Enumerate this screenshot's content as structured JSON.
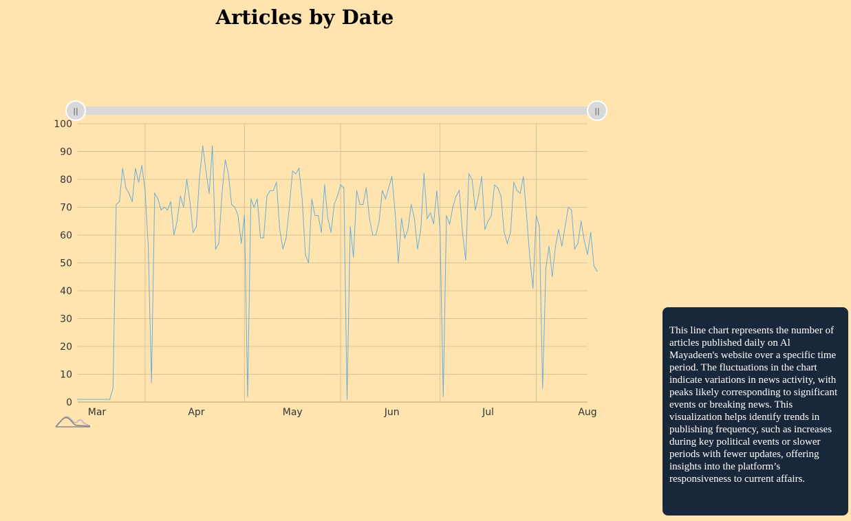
{
  "chart_data": {
    "type": "line",
    "title": "Articles by Date",
    "xlabel": "",
    "ylabel": "",
    "x_range": [
      "2024-02-24",
      "2024-08-01"
    ],
    "ylim": [
      0,
      100
    ],
    "y_ticks": [
      0,
      10,
      20,
      30,
      40,
      50,
      60,
      70,
      80,
      90,
      100
    ],
    "x_ticks": [
      {
        "date": "2024-03-01",
        "label": "Mar"
      },
      {
        "date": "2024-04-01",
        "label": "Apr"
      },
      {
        "date": "2024-05-01",
        "label": "May"
      },
      {
        "date": "2024-06-01",
        "label": "Jun"
      },
      {
        "date": "2024-07-01",
        "label": "Jul"
      },
      {
        "date": "2024-08-01",
        "label": "Aug"
      }
    ],
    "x_gridlines": [
      "2024-03-16",
      "2024-04-16",
      "2024-05-16",
      "2024-06-16",
      "2024-07-16"
    ],
    "grid": true,
    "line_color": "#6aaed6",
    "series": [
      {
        "values": [
          [
            "2024-02-24",
            1
          ],
          [
            "2024-03-05",
            1
          ],
          [
            "2024-03-06",
            5
          ],
          [
            "2024-03-07",
            71
          ],
          [
            "2024-03-08",
            72
          ],
          [
            "2024-03-09",
            84
          ],
          [
            "2024-03-10",
            77
          ],
          [
            "2024-03-11",
            75
          ],
          [
            "2024-03-12",
            72
          ],
          [
            "2024-03-13",
            84
          ],
          [
            "2024-03-14",
            79
          ],
          [
            "2024-03-15",
            85
          ],
          [
            "2024-03-16",
            76
          ],
          [
            "2024-03-17",
            56
          ],
          [
            "2024-03-18",
            7
          ],
          [
            "2024-03-19",
            75
          ],
          [
            "2024-03-20",
            73
          ],
          [
            "2024-03-21",
            69
          ],
          [
            "2024-03-22",
            70
          ],
          [
            "2024-03-23",
            69
          ],
          [
            "2024-03-24",
            72
          ],
          [
            "2024-03-25",
            60
          ],
          [
            "2024-03-26",
            65
          ],
          [
            "2024-03-27",
            74
          ],
          [
            "2024-03-28",
            70
          ],
          [
            "2024-03-29",
            80
          ],
          [
            "2024-03-30",
            72
          ],
          [
            "2024-03-31",
            61
          ],
          [
            "2024-04-01",
            63
          ],
          [
            "2024-04-02",
            81
          ],
          [
            "2024-04-03",
            92
          ],
          [
            "2024-04-04",
            83
          ],
          [
            "2024-04-05",
            75
          ],
          [
            "2024-04-06",
            92
          ],
          [
            "2024-04-07",
            55
          ],
          [
            "2024-04-08",
            57
          ],
          [
            "2024-04-09",
            75
          ],
          [
            "2024-04-10",
            87
          ],
          [
            "2024-04-11",
            82
          ],
          [
            "2024-04-12",
            71
          ],
          [
            "2024-04-13",
            70
          ],
          [
            "2024-04-14",
            67
          ],
          [
            "2024-04-15",
            57
          ],
          [
            "2024-04-16",
            67
          ],
          [
            "2024-04-17",
            2
          ],
          [
            "2024-04-18",
            73
          ],
          [
            "2024-04-19",
            70
          ],
          [
            "2024-04-20",
            73
          ],
          [
            "2024-04-21",
            59
          ],
          [
            "2024-04-22",
            59
          ],
          [
            "2024-04-23",
            74
          ],
          [
            "2024-04-24",
            76
          ],
          [
            "2024-04-25",
            76
          ],
          [
            "2024-04-26",
            79
          ],
          [
            "2024-04-27",
            62
          ],
          [
            "2024-04-28",
            55
          ],
          [
            "2024-04-29",
            59
          ],
          [
            "2024-04-30",
            70
          ],
          [
            "2024-05-01",
            83
          ],
          [
            "2024-05-02",
            82
          ],
          [
            "2024-05-03",
            84
          ],
          [
            "2024-05-04",
            73
          ],
          [
            "2024-05-05",
            53
          ],
          [
            "2024-05-06",
            50
          ],
          [
            "2024-05-07",
            73
          ],
          [
            "2024-05-08",
            67
          ],
          [
            "2024-05-09",
            67
          ],
          [
            "2024-05-10",
            61
          ],
          [
            "2024-05-11",
            78
          ],
          [
            "2024-05-12",
            66
          ],
          [
            "2024-05-13",
            61
          ],
          [
            "2024-05-14",
            71
          ],
          [
            "2024-05-15",
            74
          ],
          [
            "2024-05-16",
            78
          ],
          [
            "2024-05-17",
            77
          ],
          [
            "2024-05-18",
            1
          ],
          [
            "2024-05-19",
            63
          ],
          [
            "2024-05-20",
            52
          ],
          [
            "2024-05-21",
            76
          ],
          [
            "2024-05-22",
            71
          ],
          [
            "2024-05-23",
            71
          ],
          [
            "2024-05-24",
            77
          ],
          [
            "2024-05-25",
            66
          ],
          [
            "2024-05-26",
            60
          ],
          [
            "2024-05-27",
            60
          ],
          [
            "2024-05-28",
            65
          ],
          [
            "2024-05-29",
            76
          ],
          [
            "2024-05-30",
            73
          ],
          [
            "2024-05-31",
            77
          ],
          [
            "2024-06-01",
            81
          ],
          [
            "2024-06-02",
            68
          ],
          [
            "2024-06-03",
            50
          ],
          [
            "2024-06-04",
            66
          ],
          [
            "2024-06-05",
            59
          ],
          [
            "2024-06-06",
            62
          ],
          [
            "2024-06-07",
            71
          ],
          [
            "2024-06-08",
            66
          ],
          [
            "2024-06-09",
            55
          ],
          [
            "2024-06-10",
            62
          ],
          [
            "2024-06-11",
            82
          ],
          [
            "2024-06-12",
            66
          ],
          [
            "2024-06-13",
            68
          ],
          [
            "2024-06-14",
            64
          ],
          [
            "2024-06-15",
            76
          ],
          [
            "2024-06-16",
            62
          ],
          [
            "2024-06-17",
            2
          ],
          [
            "2024-06-18",
            67
          ],
          [
            "2024-06-19",
            64
          ],
          [
            "2024-06-20",
            70
          ],
          [
            "2024-06-21",
            74
          ],
          [
            "2024-06-22",
            76
          ],
          [
            "2024-06-23",
            61
          ],
          [
            "2024-06-24",
            51
          ],
          [
            "2024-06-25",
            82
          ],
          [
            "2024-06-26",
            80
          ],
          [
            "2024-06-27",
            69
          ],
          [
            "2024-06-28",
            74
          ],
          [
            "2024-06-29",
            81
          ],
          [
            "2024-06-30",
            62
          ],
          [
            "2024-07-01",
            65
          ],
          [
            "2024-07-02",
            67
          ],
          [
            "2024-07-03",
            78
          ],
          [
            "2024-07-04",
            77
          ],
          [
            "2024-07-05",
            74
          ],
          [
            "2024-07-06",
            61
          ],
          [
            "2024-07-07",
            57
          ],
          [
            "2024-07-08",
            61
          ],
          [
            "2024-07-09",
            79
          ],
          [
            "2024-07-10",
            76
          ],
          [
            "2024-07-11",
            75
          ],
          [
            "2024-07-12",
            81
          ],
          [
            "2024-07-13",
            67
          ],
          [
            "2024-07-14",
            52
          ],
          [
            "2024-07-15",
            41
          ],
          [
            "2024-07-16",
            67
          ],
          [
            "2024-07-17",
            63
          ],
          [
            "2024-07-18",
            5
          ],
          [
            "2024-07-19",
            48
          ],
          [
            "2024-07-20",
            56
          ],
          [
            "2024-07-21",
            45
          ],
          [
            "2024-07-22",
            56
          ],
          [
            "2024-07-23",
            62
          ],
          [
            "2024-07-24",
            56
          ],
          [
            "2024-07-25",
            63
          ],
          [
            "2024-07-26",
            70
          ],
          [
            "2024-07-27",
            69
          ],
          [
            "2024-07-28",
            55
          ],
          [
            "2024-07-29",
            57
          ],
          [
            "2024-07-30",
            65
          ],
          [
            "2024-07-31",
            58
          ],
          [
            "2024-08-01",
            53
          ],
          [
            "2024-08-02",
            61
          ],
          [
            "2024-08-03",
            49
          ],
          [
            "2024-08-04",
            47
          ]
        ]
      }
    ]
  },
  "range_slider": {
    "start": "2024-02-24",
    "end": "2024-08-04",
    "handle_glyph": "||"
  },
  "info_panel": {
    "text": "This line chart represents the number of articles published daily on Al Mayadeen's website over a specific time period. The fluctuations in the chart indicate variations in news activity, with peaks likely corresponding to significant events or breaking news. This visualization helps identify trends in publishing frequency, such as increases during key political events or slower periods with fewer updates, offering insights into the platform’s responsiveness to current affairs."
  },
  "colors": {
    "background": "#ffe4b0",
    "gridline": "#d9c294",
    "slider_track": "#d9d9d9",
    "panel_background": "#19273a"
  }
}
